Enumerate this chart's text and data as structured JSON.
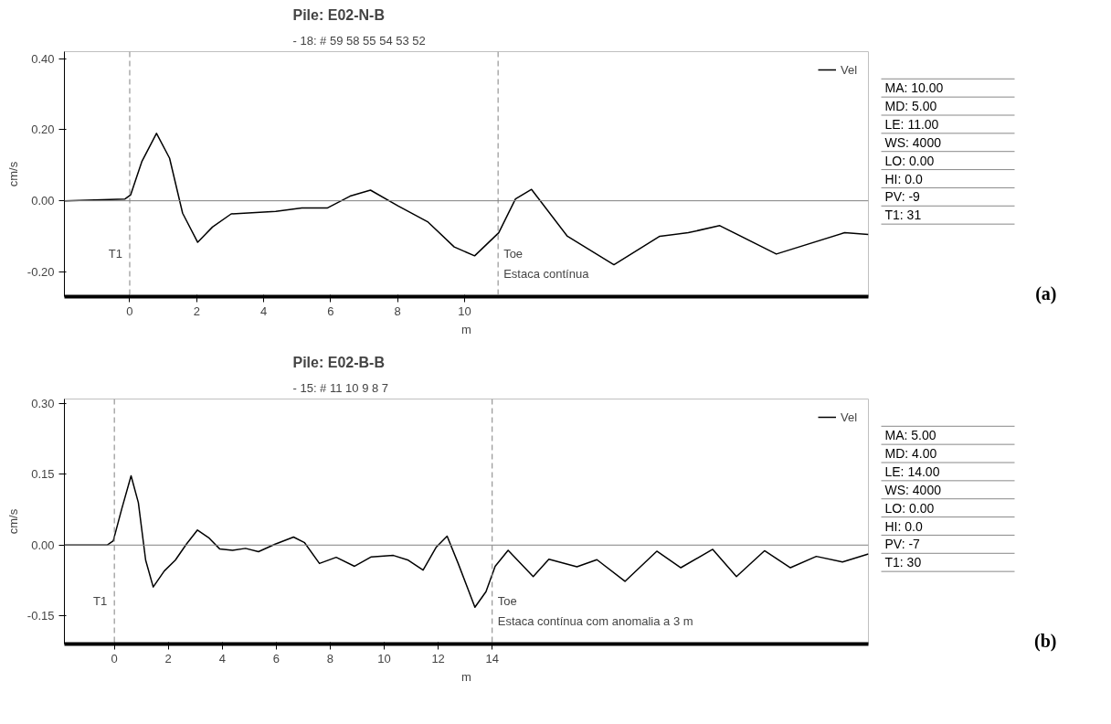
{
  "chart_data": [
    {
      "type": "line",
      "title": "Pile: E02-N-B",
      "subtitle": "- 18: # 59 58 55 54 53 52",
      "ylabel": "cm/s",
      "xlabel": "m",
      "series": [
        {
          "name": "Vel",
          "color": "#000000",
          "x": [
            -1.95,
            -0.14,
            0.03,
            0.36,
            0.8,
            1.19,
            1.58,
            2.03,
            2.47,
            3.03,
            4.36,
            5.14,
            5.91,
            6.58,
            7.19,
            8.02,
            8.91,
            9.69,
            10.3,
            11.02,
            11.52,
            12.0,
            13.07,
            14.46,
            15.83,
            16.68,
            17.62,
            19.31,
            21.35,
            22.06
          ],
          "values": [
            0,
            0.005,
            0.017,
            0.11,
            0.19,
            0.12,
            -0.035,
            -0.117,
            -0.074,
            -0.037,
            -0.03,
            -0.02,
            -0.02,
            0.013,
            0.03,
            -0.015,
            -0.06,
            -0.13,
            -0.155,
            -0.09,
            0.005,
            0.032,
            -0.1,
            -0.18,
            -0.1,
            -0.09,
            -0.07,
            -0.15,
            -0.09,
            -0.095
          ]
        }
      ],
      "xlim": [
        -1.95,
        22.06
      ],
      "ylim": [
        -0.27,
        0.42
      ],
      "xticks": [
        0,
        2,
        4,
        6,
        8,
        10
      ],
      "yticks": [
        {
          "value": -0.2,
          "label": "-0.20"
        },
        {
          "value": 0,
          "label": "0.00"
        },
        {
          "value": 0.2,
          "label": "0.20"
        },
        {
          "value": 0.4,
          "label": "0.40"
        }
      ],
      "ref_lines": [
        {
          "axis": "x",
          "value": 0,
          "label": "T1",
          "color": "#808080",
          "line_style": "dashed"
        },
        {
          "axis": "x",
          "value": 11,
          "label": "Toe",
          "color": "#808080",
          "line_style": "dashed"
        },
        {
          "axis": "y",
          "value": 0,
          "label": null,
          "color": "#808080",
          "line_style": "solid"
        }
      ],
      "annotations": [
        "Estaca contínua",
        "MA:   10.00",
        "MD:    5.00",
        "LE:   11.00",
        "WS:   4000",
        "LO:    0.00",
        "HI:     0.0",
        "PV:      -9",
        "T1:      31",
        "(a)"
      ],
      "grid": false,
      "legend": "right",
      "line_style": "solid",
      "marker": "none"
    },
    {
      "type": "line",
      "title": "Pile: E02-B-B",
      "subtitle": "- 15: # 11 10 9 8 7",
      "ylabel": "cm/s",
      "xlabel": "m",
      "series": [
        {
          "name": "Vel",
          "color": "#000000",
          "x": [
            -1.85,
            -0.27,
            -0.04,
            0.27,
            0.62,
            0.89,
            1.16,
            1.44,
            1.85,
            2.26,
            2.67,
            3.08,
            3.49,
            3.9,
            4.38,
            4.86,
            5.34,
            5.96,
            6.64,
            7.05,
            7.6,
            8.22,
            8.9,
            9.52,
            10.34,
            10.89,
            11.44,
            11.92,
            12.33,
            12.74,
            13.36,
            13.77,
            14.11,
            14.59,
            15.52,
            16.1,
            17.14,
            17.88,
            18.92,
            20.1,
            20.99,
            22.17,
            23.05,
            24.09,
            25.05,
            26.01,
            26.98,
            27.94
          ],
          "values": [
            0,
            0,
            0.009,
            0.076,
            0.147,
            0.09,
            -0.032,
            -0.089,
            -0.055,
            -0.032,
            0.002,
            0.032,
            0.016,
            -0.008,
            -0.011,
            -0.007,
            -0.014,
            0.002,
            0.017,
            0.005,
            -0.039,
            -0.026,
            -0.045,
            -0.025,
            -0.022,
            -0.032,
            -0.053,
            -0.005,
            0.019,
            -0.039,
            -0.132,
            -0.099,
            -0.045,
            -0.011,
            -0.067,
            -0.03,
            -0.046,
            -0.031,
            -0.077,
            -0.013,
            -0.048,
            -0.009,
            -0.067,
            -0.012,
            -0.048,
            -0.024,
            -0.036,
            -0.019
          ]
        }
      ],
      "xlim": [
        -1.85,
        27.94
      ],
      "ylim": [
        -0.21,
        0.31
      ],
      "xticks": [
        0,
        2,
        4,
        6,
        8,
        10,
        12,
        14
      ],
      "yticks": [
        {
          "value": -0.15,
          "label": "-0.15"
        },
        {
          "value": 0,
          "label": "0.00"
        },
        {
          "value": 0.15,
          "label": "0.15"
        },
        {
          "value": 0.3,
          "label": "0.30"
        }
      ],
      "ref_lines": [
        {
          "axis": "x",
          "value": 0,
          "label": "T1",
          "color": "#808080",
          "line_style": "dashed"
        },
        {
          "axis": "x",
          "value": 14,
          "label": "Toe",
          "color": "#808080",
          "line_style": "dashed"
        },
        {
          "axis": "y",
          "value": 0,
          "label": null,
          "color": "#808080",
          "line_style": "solid"
        }
      ],
      "annotations": [
        "Estaca contínua com anomalia a 3 m",
        "MA:    5.00",
        "MD:    4.00",
        "LE:   14.00",
        "WS:   4000",
        "LO:    0.00",
        "HI:     0.0",
        "PV:      -7",
        "T1:      30",
        "(b)"
      ],
      "grid": false,
      "legend": "right",
      "line_style": "solid",
      "marker": "none"
    }
  ]
}
